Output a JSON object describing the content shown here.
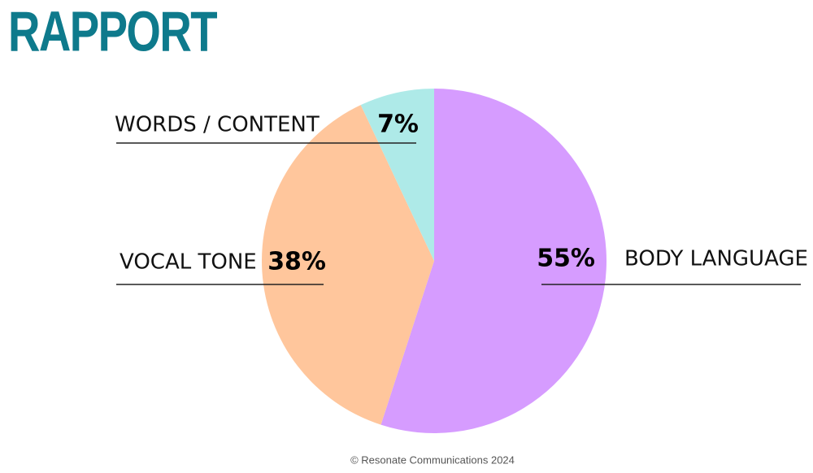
{
  "chart_data": {
    "type": "pie",
    "title": "RAPPORT",
    "categories": [
      "BODY LANGUAGE",
      "VOCAL TONE",
      "WORDS / CONTENT"
    ],
    "values": [
      55,
      38,
      7
    ],
    "value_labels": [
      "55%",
      "38%",
      "7%"
    ],
    "colors": [
      "#d69cff",
      "#ffc69c",
      "#aeeae8"
    ],
    "footer": "© Resonate Communications 2024"
  }
}
